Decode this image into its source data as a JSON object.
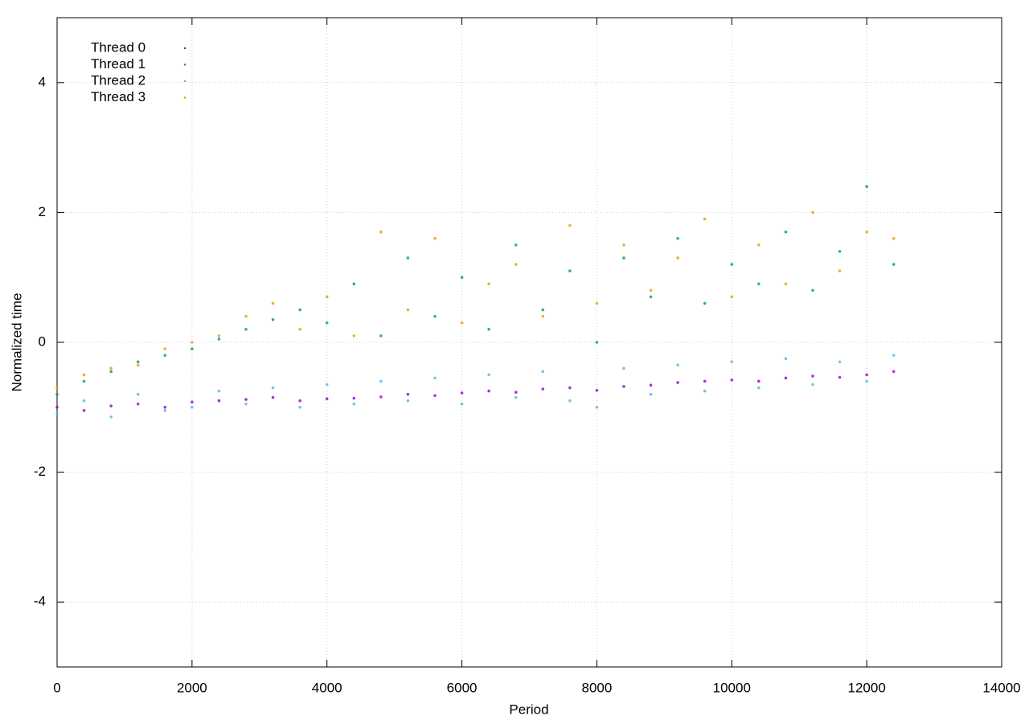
{
  "chart_data": {
    "type": "scatter",
    "xlabel": "Period",
    "ylabel": "Normalized time",
    "x": [
      0,
      400,
      800,
      1200,
      1600,
      2000,
      2400,
      2800,
      3200,
      3600,
      4000,
      4400,
      4800,
      5200,
      5600,
      6000,
      6400,
      6800,
      7200,
      7600,
      8000,
      8400,
      8800,
      9200,
      9600,
      10000,
      10400,
      10800,
      11200,
      11600,
      12000,
      12400
    ],
    "series": [
      {
        "name": "Thread 0",
        "color": "#9400d3",
        "values": [
          -1.0,
          -1.05,
          -0.98,
          -0.95,
          -1.0,
          -0.92,
          -0.9,
          -0.88,
          -0.85,
          -0.9,
          -0.87,
          -0.86,
          -0.84,
          -0.8,
          -0.82,
          -0.78,
          -0.75,
          -0.77,
          -0.72,
          -0.7,
          -0.74,
          -0.68,
          -0.66,
          -0.62,
          -0.6,
          -0.58,
          -0.6,
          -0.55,
          -0.52,
          -0.54,
          -0.5,
          -0.45
        ]
      },
      {
        "name": "Thread 1",
        "color": "#009e73",
        "values": [
          -0.8,
          -0.6,
          -0.45,
          -0.3,
          -0.2,
          -0.1,
          0.05,
          0.2,
          0.35,
          0.5,
          0.3,
          0.9,
          0.1,
          1.3,
          0.4,
          1.0,
          0.2,
          1.5,
          0.5,
          1.1,
          0.0,
          1.3,
          0.7,
          1.6,
          0.6,
          1.2,
          0.9,
          1.7,
          0.8,
          1.4,
          2.4,
          1.2
        ]
      },
      {
        "name": "Thread 2",
        "color": "#56b4e9",
        "values": [
          -1.1,
          -0.9,
          -1.15,
          -0.8,
          -1.05,
          -1.0,
          -0.75,
          -0.95,
          -0.7,
          -1.0,
          -0.65,
          -0.95,
          -0.6,
          -0.9,
          -0.55,
          -0.95,
          -0.5,
          -0.85,
          -0.45,
          -0.9,
          -1.0,
          -0.4,
          -0.8,
          -0.35,
          -0.75,
          -0.3,
          -0.7,
          -0.25,
          -0.65,
          -0.3,
          -0.6,
          -0.2
        ]
      },
      {
        "name": "Thread 3",
        "color": "#e69f00",
        "values": [
          -0.7,
          -0.5,
          -0.4,
          -0.35,
          -0.1,
          0.0,
          0.1,
          0.4,
          0.6,
          0.2,
          0.7,
          0.1,
          1.7,
          0.5,
          1.6,
          0.3,
          0.9,
          1.2,
          0.4,
          1.8,
          0.6,
          1.5,
          0.8,
          1.3,
          1.9,
          0.7,
          1.5,
          0.9,
          2.0,
          1.1,
          1.7,
          1.6
        ]
      }
    ],
    "xlim": [
      0,
      14000
    ],
    "xticks": [
      0,
      2000,
      4000,
      6000,
      8000,
      10000,
      12000,
      14000
    ],
    "ylim": [
      -5,
      5
    ],
    "yticks": [
      -4,
      -2,
      0,
      2,
      4
    ],
    "grid": true,
    "legend": "top-left"
  }
}
